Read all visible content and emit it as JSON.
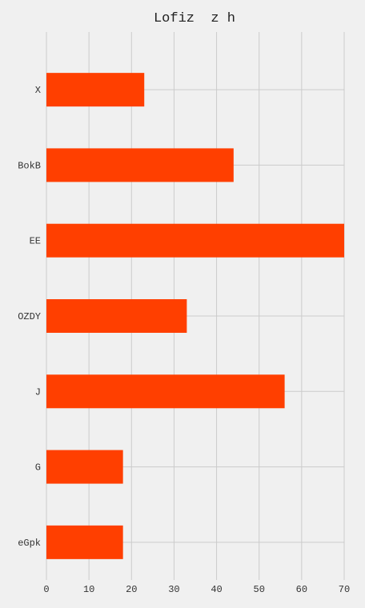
{
  "chart_data": {
    "type": "bar",
    "orientation": "horizontal",
    "title": "Lofiz  z h",
    "xlabel": "",
    "ylabel": "",
    "categories": [
      "X",
      "BokB",
      "EE",
      "OZDY",
      "J",
      "G",
      "eGpk"
    ],
    "values": [
      23,
      44,
      70,
      33,
      56,
      18,
      18
    ],
    "xlim": [
      0,
      70
    ],
    "xticks": [
      0,
      10,
      20,
      30,
      40,
      50,
      60,
      70
    ],
    "grid": true,
    "legend": "none",
    "colors": {
      "bar": "#ff3f00",
      "background": "#f0f0f0",
      "grid": "#cbcbcb",
      "text": "#333333"
    }
  }
}
